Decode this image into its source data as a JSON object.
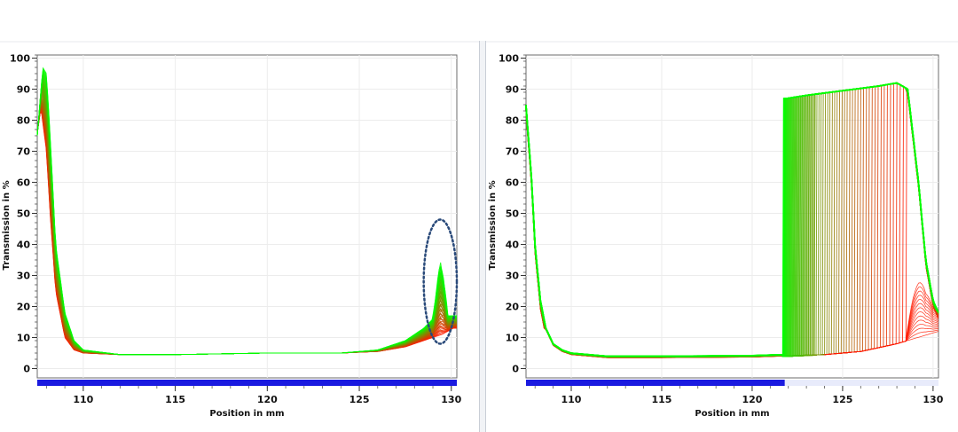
{
  "chart_data": [
    {
      "type": "line",
      "xlabel": "Position in mm",
      "ylabel": "Transmission in %",
      "xlim": [
        107.5,
        130.3
      ],
      "ylim": [
        -3,
        101
      ],
      "xticks": [
        110,
        115,
        120,
        125,
        130
      ],
      "yticks": [
        0,
        10,
        20,
        30,
        40,
        50,
        60,
        70,
        80,
        90,
        100
      ],
      "grid": true,
      "color_gradient": [
        "#ff1a00",
        "#00ff00"
      ],
      "position_bar": {
        "color": "#1a1ae0",
        "filled_range": [
          107.5,
          130.3
        ]
      },
      "annotation": {
        "shape": "dotted-ellipse",
        "color": "#2a4a7a",
        "center": [
          129.4,
          28
        ],
        "radius_x": 0.9,
        "radius_y": 20
      },
      "curve_green": {
        "x": [
          107.5,
          107.8,
          108.0,
          108.2,
          108.5,
          109.0,
          109.5,
          110,
          112,
          115,
          120,
          124,
          126,
          127.5,
          128.5,
          129.0,
          129.2,
          129.4,
          129.6,
          129.8,
          130.1
        ],
        "y": [
          75,
          97,
          95,
          75,
          40,
          18,
          9,
          6,
          4.5,
          4.5,
          5,
          5,
          6,
          9,
          13,
          16,
          25,
          34,
          28,
          17,
          17
        ]
      },
      "curve_red": {
        "x": [
          107.5,
          107.7,
          108.0,
          108.2,
          108.5,
          109.0,
          109.5,
          110,
          112,
          115,
          120,
          124,
          126,
          127.5,
          128.5,
          129.5,
          130.1
        ],
        "y": [
          76,
          84,
          70,
          50,
          25,
          10,
          6,
          5,
          4.5,
          4.5,
          5,
          5,
          5.5,
          7,
          9,
          11,
          13
        ]
      }
    },
    {
      "type": "line",
      "xlabel": "Position in mm",
      "ylabel": "Transmission in %",
      "xlim": [
        107.5,
        130.3
      ],
      "ylim": [
        -3,
        101
      ],
      "xticks": [
        110,
        115,
        120,
        125,
        130
      ],
      "yticks": [
        0,
        10,
        20,
        30,
        40,
        50,
        60,
        70,
        80,
        90,
        100
      ],
      "grid": true,
      "color_gradient": [
        "#ff1a00",
        "#00ff00"
      ],
      "position_bar": {
        "color": "#1a1ae0",
        "filled_range": [
          107.5,
          121.8
        ]
      },
      "step_start": [
        121.7,
        128.5
      ],
      "plateau": {
        "x": [
          121.9,
          123,
          125,
          127,
          128.0,
          128.6
        ],
        "y": [
          87,
          88,
          89.5,
          91,
          92,
          90
        ]
      },
      "fall": {
        "x": [
          128.6,
          129.2,
          129.6,
          130.0,
          130.3
        ],
        "y": [
          90,
          60,
          35,
          22,
          18
        ]
      },
      "left_decay": {
        "x": [
          107.5,
          107.8,
          108.0,
          108.3,
          108.6,
          109.0,
          109.5,
          110,
          112,
          115,
          120,
          121.6
        ],
        "y": [
          85,
          62,
          40,
          22,
          13,
          8,
          6,
          5,
          4,
          4,
          4.2,
          4.5
        ]
      },
      "baseline_red": {
        "x": [
          122,
          124,
          126,
          128,
          130.3
        ],
        "y": [
          4,
          4.5,
          5.5,
          8,
          12
        ]
      }
    }
  ]
}
